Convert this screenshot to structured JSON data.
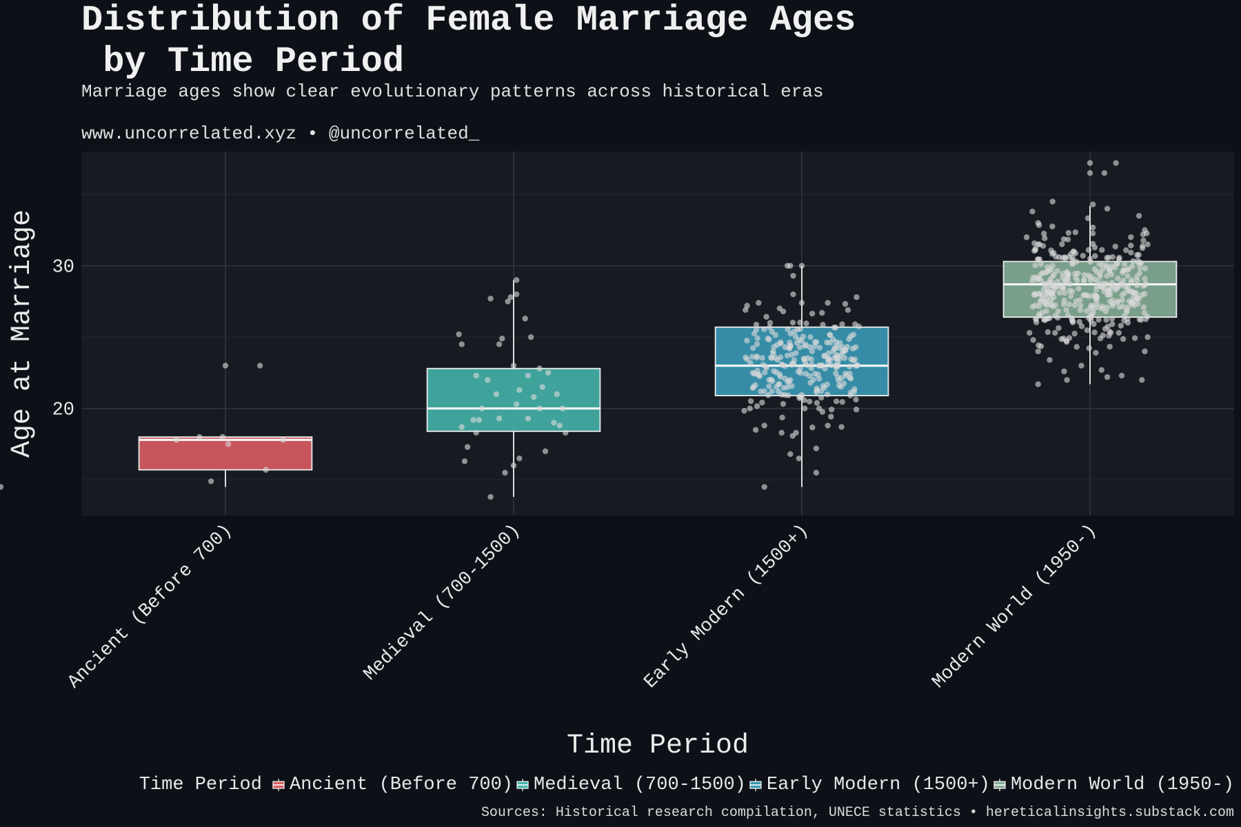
{
  "title_line1": "Distribution of Female Marriage Ages",
  "title_line2": " by Time Period",
  "subtitle": "Marriage ages show clear evolutionary patterns across historical eras",
  "credit": "www.uncorrelated.xyz • @uncorrelated_",
  "sources": "Sources: Historical research compilation, UNECE statistics • hereticalinsights.substack.com",
  "legend": {
    "title": "Time Period",
    "items": [
      {
        "label": "Ancient (Before 700)",
        "color": "#d95c63"
      },
      {
        "label": "Medieval (700-1500)",
        "color": "#45b3a8"
      },
      {
        "label": "Early Modern (1500+)",
        "color": "#3a99b5"
      },
      {
        "label": "Modern World (1950-)",
        "color": "#84ad96"
      }
    ]
  },
  "chart_data": {
    "type": "boxplot",
    "title": "Distribution of Female Marriage Ages by Time Period",
    "xlabel": "Time Period",
    "ylabel": "Age at Marriage",
    "ylim": [
      12.5,
      38
    ],
    "yticks": [
      20,
      30
    ],
    "categories": [
      "Ancient (Before 700)",
      "Medieval (700-1500)",
      "Early Modern (1500+)",
      "Modern World (1950-)"
    ],
    "boxes": [
      {
        "category": "Ancient (Before 700)",
        "whisker_low": 14.5,
        "q1": 15.7,
        "median": 17.8,
        "q3": 18.0,
        "whisker_high": 18.0,
        "color": "#d95c63",
        "points": [
          [
            -0.78,
            14.5
          ],
          [
            -0.05,
            14.9
          ],
          [
            0.0,
            23.0
          ],
          [
            0.12,
            23.0
          ],
          [
            -0.17,
            17.8
          ],
          [
            -0.09,
            18.0
          ],
          [
            -0.01,
            18.0
          ],
          [
            0.01,
            17.5
          ],
          [
            0.14,
            15.7
          ],
          [
            0.2,
            17.8
          ]
        ]
      },
      {
        "category": "Medieval (700-1500)",
        "whisker_low": 13.8,
        "q1": 18.4,
        "median": 20.0,
        "q3": 22.8,
        "whisker_high": 29.0,
        "color": "#45b3a8",
        "points": [
          [
            -0.08,
            13.8
          ],
          [
            -0.03,
            15.5
          ],
          [
            0.0,
            16.0
          ],
          [
            0.02,
            16.5
          ],
          [
            0.11,
            17.0
          ],
          [
            -0.17,
            16.3
          ],
          [
            -0.16,
            17.3
          ],
          [
            -0.13,
            18.3
          ],
          [
            0.18,
            18.3
          ],
          [
            0.16,
            18.8
          ],
          [
            0.14,
            19.0
          ],
          [
            -0.18,
            18.7
          ],
          [
            -0.12,
            19.2
          ],
          [
            -0.05,
            19.3
          ],
          [
            0.05,
            19.3
          ],
          [
            0.09,
            20.0
          ],
          [
            0.17,
            20.0
          ],
          [
            -0.11,
            20.0
          ],
          [
            0.01,
            20.3
          ],
          [
            0.07,
            20.8
          ],
          [
            -0.06,
            21.0
          ],
          [
            0.02,
            21.3
          ],
          [
            0.1,
            21.5
          ],
          [
            -0.09,
            22.0
          ],
          [
            0.05,
            22.3
          ],
          [
            0.12,
            22.5
          ],
          [
            -0.13,
            22.3
          ],
          [
            0.0,
            23.0
          ],
          [
            0.09,
            22.8
          ],
          [
            -0.18,
            24.5
          ],
          [
            -0.19,
            25.2
          ],
          [
            -0.05,
            24.5
          ],
          [
            -0.04,
            24.9
          ],
          [
            0.06,
            25.0
          ],
          [
            0.04,
            26.3
          ],
          [
            -0.02,
            27.5
          ],
          [
            -0.01,
            27.8
          ],
          [
            0.01,
            28.0
          ],
          [
            -0.08,
            27.7
          ],
          [
            0.01,
            29.0
          ],
          [
            -0.14,
            19.2
          ],
          [
            0.15,
            21.0
          ]
        ]
      },
      {
        "category": "Early Modern (1500+)",
        "whisker_low": 14.5,
        "q1": 20.9,
        "median": 23.0,
        "q3": 25.7,
        "whisker_high": 30.0,
        "color": "#3a99b5",
        "points": [
          [
            -0.13,
            14.5
          ],
          [
            0.05,
            15.5
          ],
          [
            -0.04,
            16.8
          ],
          [
            0.05,
            17.2
          ],
          [
            -0.01,
            16.5
          ],
          [
            -0.16,
            18.5
          ],
          [
            -0.07,
            18.3
          ],
          [
            -0.02,
            18.3
          ],
          [
            0.09,
            18.8
          ],
          [
            -0.13,
            18.8
          ],
          [
            0.01,
            20.0
          ],
          [
            -0.03,
            29.3
          ],
          [
            -0.04,
            30.0
          ],
          [
            -0.05,
            30.0
          ],
          [
            0.0,
            30.0
          ],
          [
            0.0,
            27.4
          ],
          [
            -0.19,
            27.2
          ],
          [
            0.19,
            27.8
          ],
          [
            0.16,
            26.9
          ],
          [
            0.07,
            26.7
          ],
          [
            -0.11,
            26.0
          ],
          [
            0.14,
            25.9
          ],
          [
            -0.03,
            28.0
          ],
          [
            0.09,
            27.4
          ],
          [
            -0.15,
            27.4
          ],
          [
            0.03,
            25.0
          ],
          [
            -0.1,
            24.0
          ],
          [
            0.12,
            23.6
          ],
          [
            -0.17,
            22.5
          ],
          [
            0.17,
            22.1
          ],
          [
            -0.13,
            21.2
          ],
          [
            0.12,
            20.5
          ],
          [
            0.03,
            21.8
          ],
          [
            -0.07,
            23.1
          ],
          [
            0.08,
            22.8
          ],
          [
            0.06,
            20.0
          ],
          [
            -0.18,
            20.0
          ]
        ]
      },
      {
        "category": "Modern World (1950-)",
        "whisker_low": 21.7,
        "q1": 26.4,
        "median": 28.7,
        "q3": 30.3,
        "whisker_high": 34.2,
        "color": "#84ad96",
        "points": [
          [
            0.0,
            37.2
          ],
          [
            0.05,
            36.5
          ],
          [
            0.0,
            36.5
          ],
          [
            0.09,
            37.2
          ],
          [
            -0.13,
            34.5
          ],
          [
            0.01,
            34.3
          ],
          [
            0.06,
            34.0
          ],
          [
            0.17,
            33.5
          ],
          [
            -0.2,
            33.8
          ],
          [
            -0.18,
            33.0
          ],
          [
            -0.22,
            32.0
          ],
          [
            0.19,
            32.5
          ],
          [
            -0.18,
            31.5
          ],
          [
            0.2,
            31.5
          ],
          [
            -0.2,
            28.9
          ],
          [
            -0.21,
            25.3
          ],
          [
            -0.18,
            24.0
          ],
          [
            -0.14,
            23.4
          ],
          [
            -0.09,
            22.6
          ],
          [
            0.06,
            22.2
          ],
          [
            0.04,
            22.7
          ],
          [
            0.11,
            22.3
          ],
          [
            0.18,
            22.0
          ],
          [
            0.19,
            24.0
          ],
          [
            0.2,
            25.0
          ],
          [
            -0.18,
            21.7
          ],
          [
            -0.08,
            22.0
          ],
          [
            -0.03,
            23.0
          ],
          [
            0.02,
            23.9
          ],
          [
            0.1,
            25.3
          ],
          [
            -0.12,
            26.5
          ],
          [
            0.15,
            27.8
          ],
          [
            0.05,
            28.2
          ],
          [
            -0.05,
            29.2
          ]
        ]
      }
    ]
  }
}
